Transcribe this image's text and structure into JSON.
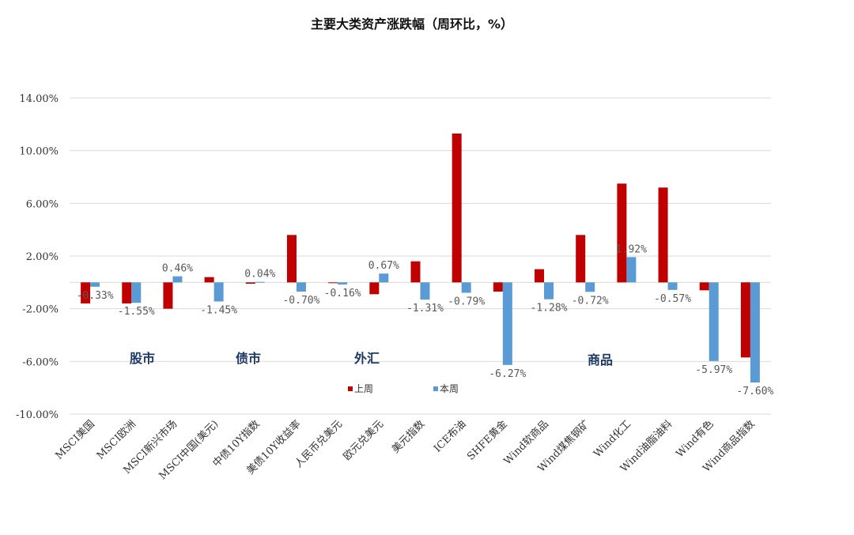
{
  "chart_data": {
    "type": "bar",
    "title": "主要大类资产涨跌幅（周环比，%）",
    "xlabel": "",
    "ylabel": "",
    "ylim": [
      -10,
      14
    ],
    "y_ticks": [
      "14.00%",
      "10.00%",
      "6.00%",
      "2.00%",
      "-2.00%",
      "-6.00%",
      "-10.00%"
    ],
    "y_tick_values": [
      14,
      10,
      6,
      2,
      -2,
      -6,
      -10
    ],
    "categories": [
      "MSCI美国",
      "MSCI欧洲",
      "MSCI新兴市场",
      "MSCI中国(美元)",
      "中债10Y指数",
      "美债10Y收益率",
      "人民币兑美元",
      "欧元兑美元",
      "美元指数",
      "ICE布油",
      "SHFE黄金",
      "Wind软商品",
      "Wind煤焦钢矿",
      "Wind化工",
      "Wind油脂油料",
      "Wind有色",
      "Wind商品指数"
    ],
    "series": [
      {
        "name": "上周",
        "color": "#c00000",
        "values": [
          -1.6,
          -1.6,
          -2.0,
          0.4,
          -0.1,
          3.6,
          -0.05,
          -0.9,
          1.6,
          11.3,
          -0.7,
          1.0,
          3.6,
          7.5,
          7.2,
          -0.6,
          -5.7
        ]
      },
      {
        "name": "本周",
        "color": "#5b9bd5",
        "values": [
          -0.33,
          -1.55,
          0.46,
          -1.45,
          0.04,
          -0.7,
          -0.16,
          0.67,
          -1.31,
          -0.79,
          -6.27,
          -1.28,
          -0.72,
          1.92,
          -0.57,
          -5.97,
          -7.6
        ]
      }
    ],
    "data_labels": [
      "-0.33%",
      "-1.55%",
      "0.46%",
      "-1.45%",
      "0.04%",
      "-0.70%",
      "-0.16%",
      "0.67%",
      "-1.31%",
      "-0.79%",
      "-6.27%",
      "-1.28%",
      "-0.72%",
      "1.92%",
      "-0.57%",
      "-5.97%",
      "-7.60%"
    ],
    "group_labels": [
      "股市",
      "债市",
      "外汇",
      "商品"
    ],
    "legend": {
      "placement": "bottom-center",
      "entries": [
        "上周",
        "本周"
      ]
    },
    "grid": true
  }
}
